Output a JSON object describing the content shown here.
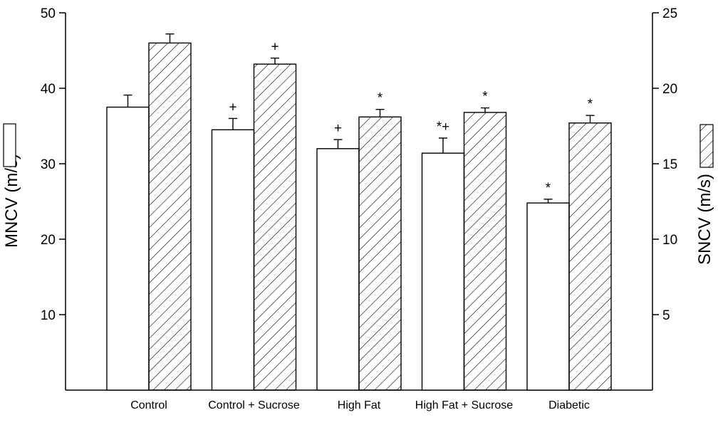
{
  "chart_data": {
    "type": "bar",
    "categories": [
      "Control",
      "Control + Sucrose",
      "High Fat",
      "High Fat + Sucrose",
      "Diabetic"
    ],
    "series": [
      {
        "axis": "left",
        "fill": "open",
        "values": [
          37.5,
          34.5,
          32.0,
          31.4,
          24.8
        ],
        "errors": [
          1.6,
          1.5,
          1.2,
          2.0,
          0.5
        ],
        "annotations": [
          "",
          "+",
          "+",
          "*+",
          "*"
        ]
      },
      {
        "axis": "right",
        "fill": "hatched",
        "values": [
          23.0,
          21.6,
          18.1,
          18.4,
          17.7
        ],
        "errors": [
          0.6,
          0.4,
          0.5,
          0.3,
          0.5
        ],
        "annotations": [
          "",
          "+",
          "*",
          "*",
          "*"
        ]
      }
    ],
    "ylabel": "MNCV (m/s)",
    "y2label": "SNCV (m/s)",
    "ylim": [
      0,
      50
    ],
    "y2lim": [
      0,
      25
    ],
    "yticks": [
      10,
      20,
      30,
      40,
      50
    ],
    "y2ticks": [
      5,
      10,
      15,
      20,
      25
    ],
    "grid": false,
    "colors": {
      "ink": "#000000",
      "open_fill": "#ffffff"
    }
  }
}
